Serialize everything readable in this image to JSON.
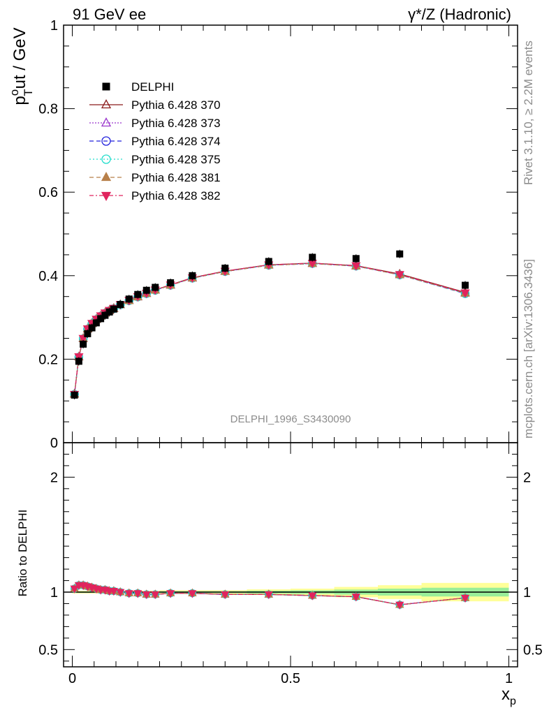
{
  "header": {
    "left": "91 GeV ee",
    "right": "γ*/Z (Hadronic)"
  },
  "side_labels": {
    "rivet": "Rivet 3.1.10, ≥ 2.2M events",
    "mcplots": "mcplots.cern.ch [arXiv:1306.3436]"
  },
  "watermark": "DELPHI_1996_S3430090",
  "main_ylabel": {
    "p": "p",
    "sup": "o",
    "sub": "T",
    "rest": "ut / GeV"
  },
  "ratio_ylabel": "Ratio to DELPHI",
  "xlabel": {
    "main": "x",
    "sub": "p"
  },
  "chart_data": [
    {
      "type": "scatter",
      "panel": "main",
      "xlim": [
        -0.02,
        1.02
      ],
      "ylim": [
        0,
        1
      ],
      "yticks": [
        {
          "v": 0,
          "label": "0"
        },
        {
          "v": 0.2,
          "label": "0.2"
        },
        {
          "v": 0.4,
          "label": "0.4"
        },
        {
          "v": 0.6,
          "label": "0.6"
        },
        {
          "v": 0.8,
          "label": "0.8"
        },
        {
          "v": 1,
          "label": "1"
        }
      ],
      "legend_position": "top-left",
      "data": {
        "name": "DELPHI",
        "color": "#000000",
        "x": [
          0.005,
          0.015,
          0.025,
          0.035,
          0.045,
          0.055,
          0.065,
          0.075,
          0.085,
          0.095,
          0.11,
          0.13,
          0.15,
          0.17,
          0.19,
          0.225,
          0.275,
          0.35,
          0.45,
          0.55,
          0.65,
          0.75,
          0.9
        ],
        "y": [
          0.114,
          0.195,
          0.236,
          0.261,
          0.275,
          0.287,
          0.297,
          0.305,
          0.313,
          0.32,
          0.331,
          0.344,
          0.355,
          0.365,
          0.372,
          0.383,
          0.4,
          0.418,
          0.434,
          0.444,
          0.441,
          0.452,
          0.377
        ]
      },
      "series": [
        {
          "name": "Pythia 6.428 370",
          "color": "#8b1a1a",
          "marker": "triangle-up-open",
          "dash": "",
          "y": [
            0.117,
            0.206,
            0.25,
            0.273,
            0.286,
            0.296,
            0.304,
            0.311,
            0.317,
            0.322,
            0.331,
            0.341,
            0.35,
            0.358,
            0.366,
            0.378,
            0.395,
            0.411,
            0.426,
            0.43,
            0.424,
            0.404,
            0.36
          ]
        },
        {
          "name": "Pythia 6.428 373",
          "color": "#9933cc",
          "marker": "triangle-up-open",
          "dash": "2,2",
          "y": [
            0.116,
            0.205,
            0.249,
            0.272,
            0.285,
            0.295,
            0.303,
            0.31,
            0.316,
            0.321,
            0.33,
            0.34,
            0.349,
            0.357,
            0.365,
            0.377,
            0.394,
            0.41,
            0.425,
            0.429,
            0.423,
            0.402,
            0.358
          ]
        },
        {
          "name": "Pythia 6.428 374",
          "color": "#2222dd",
          "marker": "circle-open",
          "dash": "6,4",
          "y": [
            0.116,
            0.205,
            0.249,
            0.272,
            0.285,
            0.295,
            0.303,
            0.31,
            0.316,
            0.321,
            0.33,
            0.34,
            0.349,
            0.357,
            0.365,
            0.377,
            0.394,
            0.41,
            0.425,
            0.429,
            0.423,
            0.402,
            0.357
          ]
        },
        {
          "name": "Pythia 6.428 375",
          "color": "#22ddcc",
          "marker": "circle-open",
          "dash": "2,3",
          "y": [
            0.116,
            0.205,
            0.249,
            0.272,
            0.285,
            0.295,
            0.303,
            0.31,
            0.316,
            0.321,
            0.33,
            0.34,
            0.349,
            0.357,
            0.365,
            0.377,
            0.394,
            0.41,
            0.425,
            0.429,
            0.423,
            0.402,
            0.357
          ]
        },
        {
          "name": "Pythia 6.428 381",
          "color": "#b8804a",
          "marker": "triangle-up-filled",
          "dash": "6,4",
          "y": [
            0.116,
            0.205,
            0.249,
            0.272,
            0.285,
            0.295,
            0.303,
            0.31,
            0.316,
            0.321,
            0.33,
            0.34,
            0.349,
            0.357,
            0.365,
            0.377,
            0.394,
            0.41,
            0.425,
            0.429,
            0.423,
            0.402,
            0.358
          ]
        },
        {
          "name": "Pythia 6.428 382",
          "color": "#e0245e",
          "marker": "triangle-down-filled",
          "dash": "6,3,2,3",
          "y": [
            0.116,
            0.206,
            0.25,
            0.273,
            0.286,
            0.296,
            0.304,
            0.311,
            0.317,
            0.322,
            0.331,
            0.341,
            0.35,
            0.358,
            0.366,
            0.378,
            0.395,
            0.411,
            0.426,
            0.43,
            0.424,
            0.403,
            0.359
          ]
        }
      ]
    },
    {
      "type": "line",
      "panel": "ratio",
      "xlim": [
        -0.02,
        1.02
      ],
      "ylim": [
        0.35,
        2.3
      ],
      "yticks": [
        {
          "v": 0.5,
          "label": "0.5"
        },
        {
          "v": 1,
          "label": "1"
        },
        {
          "v": 2,
          "label": "2"
        }
      ],
      "xticks": [
        {
          "v": 0,
          "label": "0"
        },
        {
          "v": 0.5,
          "label": "0.5"
        },
        {
          "v": 1,
          "label": "1"
        }
      ],
      "reference": 1,
      "uncertainty_bands": [
        {
          "x0": 0.0,
          "x1": 0.2,
          "stat": 0.006,
          "total": 0.012
        },
        {
          "x0": 0.2,
          "x1": 0.4,
          "stat": 0.008,
          "total": 0.016
        },
        {
          "x0": 0.4,
          "x1": 0.5,
          "stat": 0.012,
          "total": 0.024
        },
        {
          "x0": 0.5,
          "x1": 0.6,
          "stat": 0.015,
          "total": 0.03
        },
        {
          "x0": 0.6,
          "x1": 0.7,
          "stat": 0.022,
          "total": 0.045
        },
        {
          "x0": 0.7,
          "x1": 0.8,
          "stat": 0.03,
          "total": 0.06
        },
        {
          "x0": 0.8,
          "x1": 1.0,
          "stat": 0.038,
          "total": 0.08
        }
      ],
      "ratio_y": [
        1.03,
        1.06,
        1.06,
        1.05,
        1.04,
        1.03,
        1.02,
        1.02,
        1.01,
        1.01,
        1.0,
        0.99,
        0.99,
        0.98,
        0.98,
        0.99,
        0.99,
        0.98,
        0.98,
        0.97,
        0.96,
        0.89,
        0.95
      ]
    }
  ]
}
